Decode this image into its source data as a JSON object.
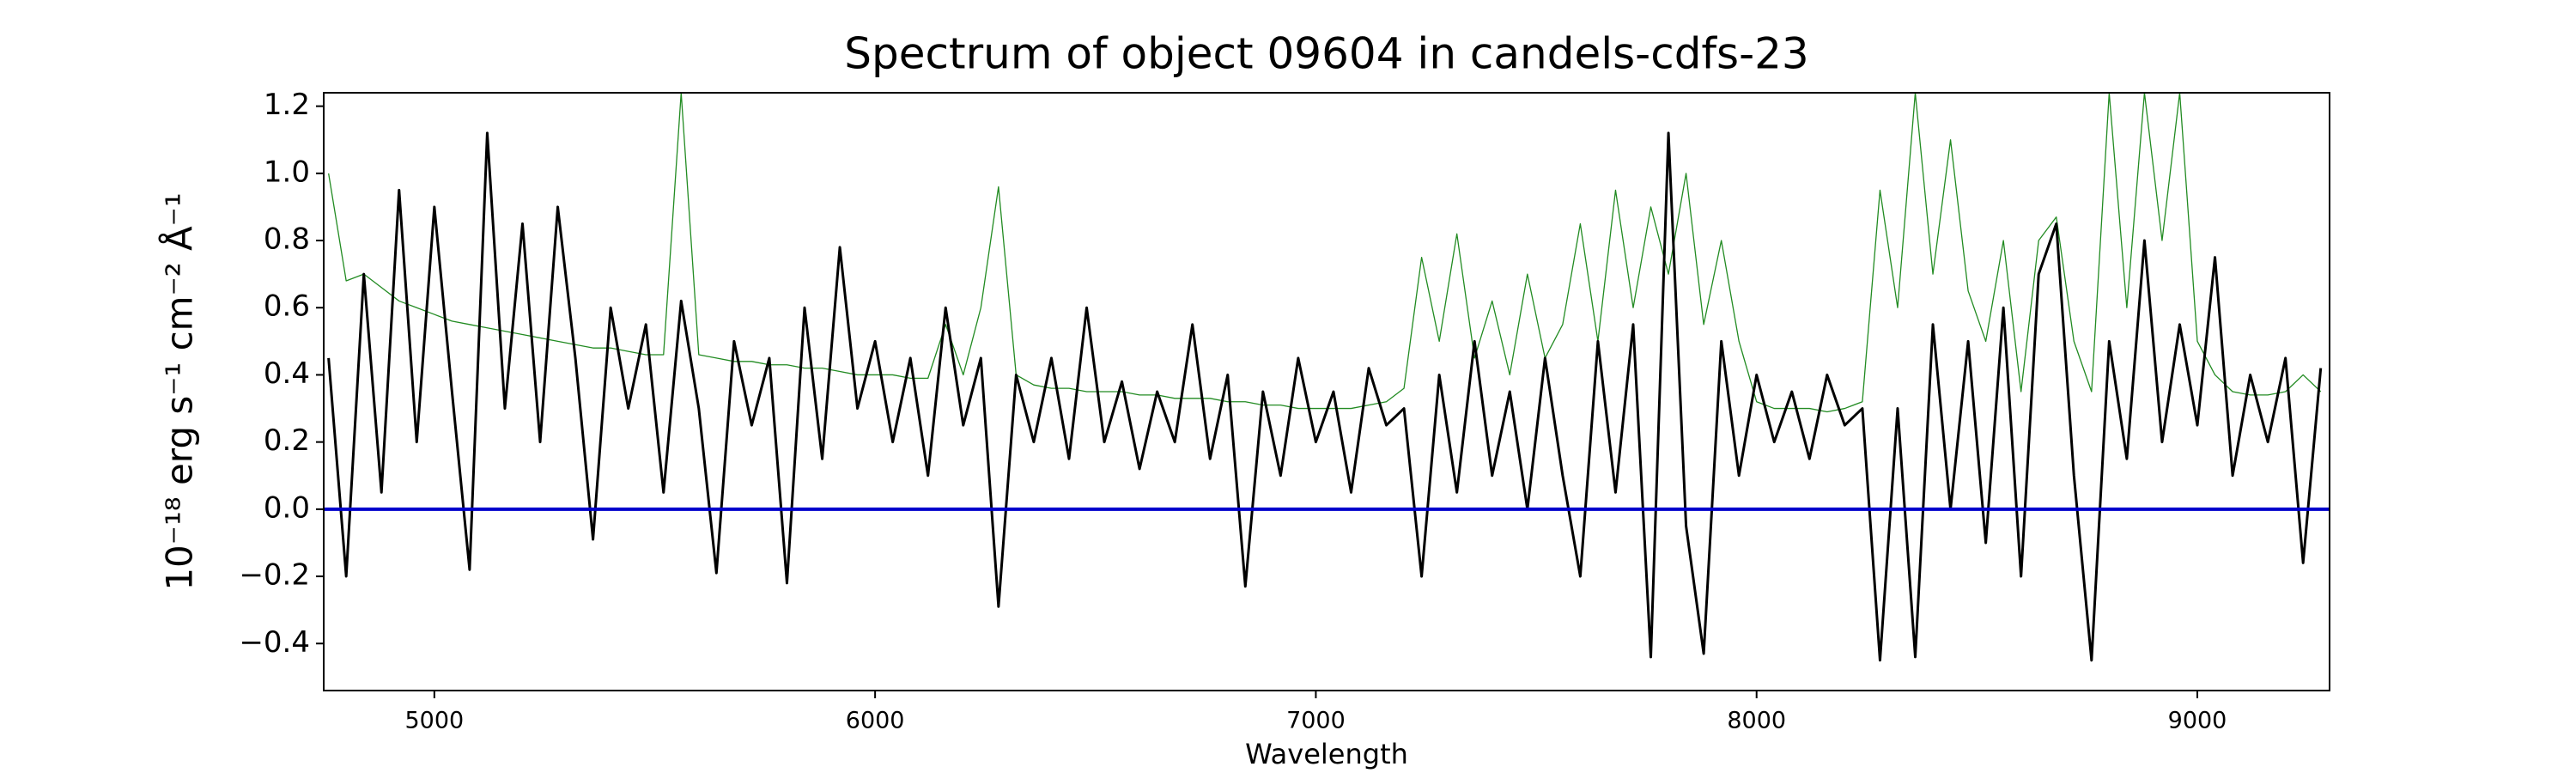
{
  "chart_data": {
    "type": "line",
    "title": "Spectrum of object 09604 in candels-cdfs-23",
    "xlabel": "Wavelength",
    "ylabel": "10⁻¹⁸ erg s⁻¹ cm⁻² Å⁻¹",
    "x": [
      4760,
      4800,
      4840,
      4880,
      4920,
      4960,
      5000,
      5040,
      5080,
      5120,
      5160,
      5200,
      5240,
      5280,
      5320,
      5360,
      5400,
      5440,
      5480,
      5520,
      5560,
      5600,
      5640,
      5680,
      5720,
      5760,
      5800,
      5840,
      5880,
      5920,
      5960,
      6000,
      6040,
      6080,
      6120,
      6160,
      6200,
      6240,
      6280,
      6320,
      6360,
      6400,
      6440,
      6480,
      6520,
      6560,
      6600,
      6640,
      6680,
      6720,
      6760,
      6800,
      6840,
      6880,
      6920,
      6960,
      7000,
      7040,
      7080,
      7120,
      7160,
      7200,
      7240,
      7280,
      7320,
      7360,
      7400,
      7440,
      7480,
      7520,
      7560,
      7600,
      7640,
      7680,
      7720,
      7760,
      7800,
      7840,
      7880,
      7920,
      7960,
      8000,
      8040,
      8080,
      8120,
      8160,
      8200,
      8240,
      8280,
      8320,
      8360,
      8400,
      8440,
      8480,
      8520,
      8560,
      8600,
      8640,
      8680,
      8720,
      8760,
      8800,
      8840,
      8880,
      8920,
      8960,
      9000,
      9040,
      9080,
      9120,
      9160,
      9200,
      9240,
      9280
    ],
    "series": [
      {
        "color": "#228b22",
        "width": 1.3,
        "values": [
          1.0,
          0.68,
          0.7,
          0.66,
          0.62,
          0.6,
          0.58,
          0.56,
          0.55,
          0.54,
          0.53,
          0.52,
          0.51,
          0.5,
          0.49,
          0.48,
          0.48,
          0.47,
          0.46,
          0.46,
          1.24,
          0.46,
          0.45,
          0.44,
          0.44,
          0.43,
          0.43,
          0.42,
          0.42,
          0.41,
          0.4,
          0.4,
          0.4,
          0.39,
          0.39,
          0.55,
          0.4,
          0.6,
          0.96,
          0.4,
          0.37,
          0.36,
          0.36,
          0.35,
          0.35,
          0.35,
          0.34,
          0.34,
          0.33,
          0.33,
          0.33,
          0.32,
          0.32,
          0.31,
          0.31,
          0.3,
          0.3,
          0.3,
          0.3,
          0.31,
          0.32,
          0.36,
          0.75,
          0.5,
          0.82,
          0.45,
          0.62,
          0.4,
          0.7,
          0.45,
          0.55,
          0.85,
          0.5,
          0.95,
          0.6,
          0.9,
          0.7,
          1.0,
          0.55,
          0.8,
          0.5,
          0.32,
          0.3,
          0.3,
          0.3,
          0.29,
          0.3,
          0.32,
          0.95,
          0.6,
          1.24,
          0.7,
          1.1,
          0.65,
          0.5,
          0.8,
          0.35,
          0.8,
          0.87,
          0.5,
          0.35,
          1.24,
          0.6,
          1.24,
          0.8,
          1.24,
          0.5,
          0.4,
          0.35,
          0.34,
          0.34,
          0.35,
          0.4,
          0.35
        ]
      },
      {
        "color": "#000000",
        "width": 3,
        "values": [
          0.45,
          -0.2,
          0.7,
          0.05,
          0.95,
          0.2,
          0.9,
          0.35,
          -0.18,
          1.12,
          0.3,
          0.85,
          0.2,
          0.9,
          0.45,
          -0.09,
          0.6,
          0.3,
          0.55,
          0.05,
          0.62,
          0.3,
          -0.19,
          0.5,
          0.25,
          0.45,
          -0.22,
          0.6,
          0.15,
          0.78,
          0.3,
          0.5,
          0.2,
          0.45,
          0.1,
          0.6,
          0.25,
          0.45,
          -0.29,
          0.4,
          0.2,
          0.45,
          0.15,
          0.6,
          0.2,
          0.38,
          0.12,
          0.35,
          0.2,
          0.55,
          0.15,
          0.4,
          -0.23,
          0.35,
          0.1,
          0.45,
          0.2,
          0.35,
          0.05,
          0.42,
          0.25,
          0.3,
          -0.2,
          0.4,
          0.05,
          0.5,
          0.1,
          0.35,
          0.0,
          0.45,
          0.1,
          -0.2,
          0.5,
          0.05,
          0.55,
          -0.44,
          1.12,
          -0.05,
          -0.43,
          0.5,
          0.1,
          0.4,
          0.2,
          0.35,
          0.15,
          0.4,
          0.25,
          0.3,
          -0.45,
          0.3,
          -0.44,
          0.55,
          0.0,
          0.5,
          -0.1,
          0.6,
          -0.2,
          0.7,
          0.85,
          0.1,
          -0.45,
          0.5,
          0.15,
          0.8,
          0.2,
          0.55,
          0.25,
          0.75,
          0.1,
          0.4,
          0.2,
          0.45,
          -0.16,
          0.42
        ]
      }
    ],
    "reference_line": {
      "value": 0,
      "color": "#0000cc"
    },
    "xlim": [
      4749,
      9300
    ],
    "ylim": [
      -0.54,
      1.24
    ],
    "xticks": [
      5000,
      6000,
      7000,
      8000,
      9000
    ],
    "yticks": [
      {
        "value": -0.4,
        "label": "−0.4"
      },
      {
        "value": -0.2,
        "label": "−0.2"
      },
      {
        "value": 0,
        "label": "0.0"
      },
      0.2,
      0.4,
      0.6,
      0.8,
      {
        "value": 1,
        "label": "1.0"
      },
      1.2
    ],
    "grid": false
  }
}
